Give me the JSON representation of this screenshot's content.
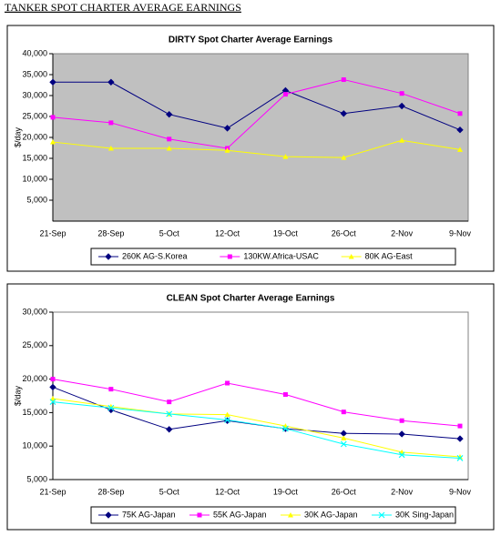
{
  "page_title": "TANKER SPOT CHARTER AVERAGE EARNINGS",
  "chart_data": [
    {
      "type": "line",
      "title": "DIRTY Spot Charter Average  Earnings",
      "y_label": "$/day",
      "plot_background": "#c0c0c0",
      "categories": [
        "21-Sep",
        "28-Sep",
        "5-Oct",
        "12-Oct",
        "19-Oct",
        "26-Oct",
        "2-Nov",
        "9-Nov"
      ],
      "ylim": [
        0,
        40000
      ],
      "yticks": [
        {
          "value": 5000,
          "label": "5,000"
        },
        {
          "value": 10000,
          "label": "10,000"
        },
        {
          "value": 15000,
          "label": "15,000"
        },
        {
          "value": 20000,
          "label": "20,000"
        },
        {
          "value": 25000,
          "label": "25,000"
        },
        {
          "value": 30000,
          "label": "30,000"
        },
        {
          "value": 35000,
          "label": "35,000"
        },
        {
          "value": 40000,
          "label": "40,000"
        }
      ],
      "series": [
        {
          "name": "260K AG-S.Korea",
          "color": "#000080",
          "marker": "diamond",
          "values": [
            33200,
            33200,
            25500,
            22200,
            31200,
            25700,
            27500,
            21800
          ]
        },
        {
          "name": "130KW.Africa-USAC",
          "color": "#ff00ff",
          "marker": "square",
          "values": [
            24800,
            23500,
            19600,
            17400,
            30300,
            33800,
            30500,
            25700
          ]
        },
        {
          "name": "80K AG-East",
          "color": "#ffff00",
          "marker": "triangle",
          "values": [
            18900,
            17400,
            17400,
            16900,
            15400,
            15200,
            19300,
            17100
          ]
        }
      ]
    },
    {
      "type": "line",
      "title": "CLEAN Spot Charter Average Earnings",
      "y_label": "$/day",
      "plot_background": "#ffffff",
      "categories": [
        "21-Sep",
        "28-Sep",
        "5-Oct",
        "12-Oct",
        "19-Oct",
        "26-Oct",
        "2-Nov",
        "9-Nov"
      ],
      "ylim": [
        5000,
        30000
      ],
      "yticks": [
        {
          "value": 5000,
          "label": "5,000"
        },
        {
          "value": 10000,
          "label": "10,000"
        },
        {
          "value": 15000,
          "label": "15,000"
        },
        {
          "value": 20000,
          "label": "20,000"
        },
        {
          "value": 25000,
          "label": "25,000"
        },
        {
          "value": 30000,
          "label": "30,000"
        }
      ],
      "series": [
        {
          "name": "75K AG-Japan",
          "color": "#000080",
          "marker": "diamond",
          "values": [
            18800,
            15400,
            12500,
            13800,
            12600,
            11900,
            11800,
            11100
          ]
        },
        {
          "name": "55K AG-Japan",
          "color": "#ff00ff",
          "marker": "square",
          "values": [
            20000,
            18500,
            16600,
            19400,
            17700,
            15100,
            13800,
            13000
          ]
        },
        {
          "name": "30K AG-Japan",
          "color": "#ffff00",
          "marker": "triangle",
          "values": [
            17100,
            15900,
            14800,
            14700,
            13000,
            11200,
            9100,
            8400
          ]
        },
        {
          "name": "30K Sing-Japan",
          "color": "#00ffff",
          "marker": "x",
          "values": [
            16600,
            15700,
            14800,
            13900,
            12600,
            10300,
            8700,
            8200
          ]
        }
      ]
    }
  ]
}
